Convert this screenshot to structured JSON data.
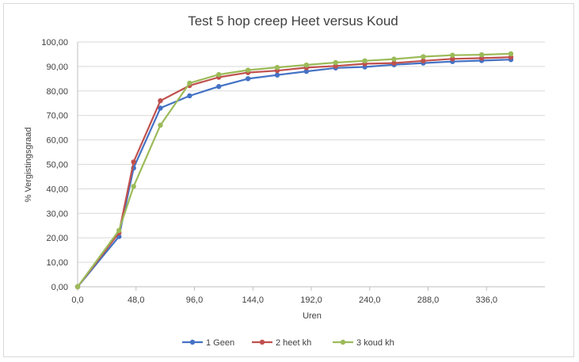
{
  "chart_data": {
    "type": "line",
    "title": "Test 5 hop creep Heet versus Koud",
    "xlabel": "Uren",
    "ylabel": "% Vergistingsgraad",
    "xlim": [
      0,
      384
    ],
    "ylim": [
      0,
      100
    ],
    "x_ticks": [
      0,
      48,
      96,
      144,
      192,
      240,
      288,
      336
    ],
    "x_tick_labels": [
      "0,0",
      "48,0",
      "96,0",
      "144,0",
      "192,0",
      "240,0",
      "288,0",
      "336,0"
    ],
    "y_ticks": [
      0,
      10,
      20,
      30,
      40,
      50,
      60,
      70,
      80,
      90,
      100
    ],
    "y_tick_labels": [
      "0,00",
      "10,00",
      "20,00",
      "30,00",
      "40,00",
      "50,00",
      "60,00",
      "70,00",
      "80,00",
      "90,00",
      "100,00"
    ],
    "grid": "horizontal",
    "legend_position": "bottom",
    "series": [
      {
        "name": "1 Geen",
        "color": "#4472c4",
        "x": [
          0,
          34,
          46,
          68,
          92,
          116,
          140,
          164,
          188,
          212,
          236,
          260,
          284,
          308,
          332,
          356
        ],
        "y": [
          0,
          20.5,
          48.5,
          73.0,
          78.0,
          81.8,
          85.0,
          86.5,
          88.0,
          89.4,
          89.8,
          90.7,
          91.4,
          92.0,
          92.4,
          92.8
        ]
      },
      {
        "name": "2 heet kh",
        "color": "#c0504d",
        "x": [
          0,
          34,
          46,
          68,
          92,
          116,
          140,
          164,
          188,
          212,
          236,
          260,
          284,
          308,
          332,
          356
        ],
        "y": [
          0,
          22.0,
          51.0,
          76.0,
          82.2,
          85.6,
          87.5,
          88.3,
          89.5,
          90.2,
          91.1,
          91.4,
          92.3,
          93.1,
          93.4,
          93.8
        ]
      },
      {
        "name": "3 koud kh",
        "color": "#9bbb59",
        "x": [
          0,
          34,
          46,
          68,
          92,
          116,
          140,
          164,
          188,
          212,
          236,
          260,
          284,
          308,
          332,
          356
        ],
        "y": [
          0,
          23.0,
          41.0,
          66.0,
          83.2,
          86.7,
          88.5,
          89.6,
          90.6,
          91.6,
          92.3,
          93.0,
          94.0,
          94.6,
          94.8,
          95.2
        ]
      }
    ]
  }
}
